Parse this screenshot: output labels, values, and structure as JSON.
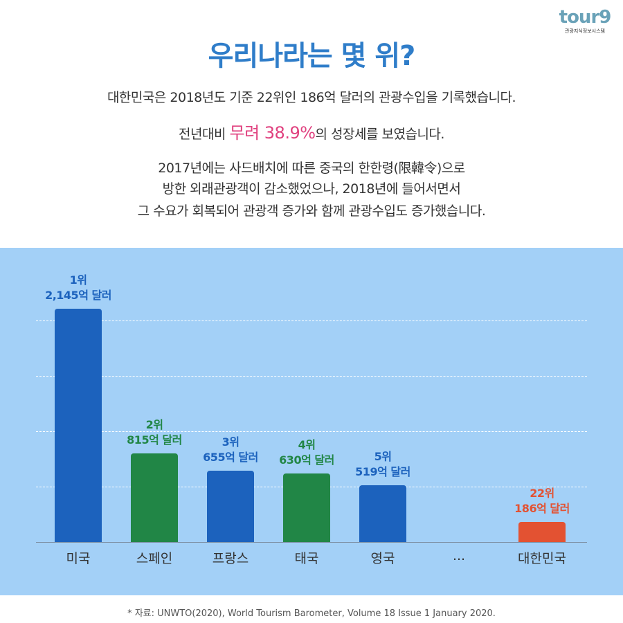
{
  "logo": {
    "text": "tour9",
    "subtitle": "관광지식정보시스템"
  },
  "title": "우리나라는 몇 위?",
  "paragraphs": {
    "p1": "대한민국은 2018년도 기준 22위인 186억 달러의 관광수입을 기록했습니다.",
    "p2_before": "전년대비 ",
    "p2_highlight": "무려 38.9%",
    "p2_after": "의 성장세를 보였습니다.",
    "p3_line1": "2017년에는 사드배치에 따른 중국의 한한령(限韓令)으로",
    "p3_line2": "방한 외래관광객이 감소했었으나, 2018년에 들어서면서",
    "p3_line3": "그 수요가 회복되어 관광객 증가와 함께 관광수입도 증가했습니다."
  },
  "colors": {
    "title": "#2f7dc9",
    "highlight": "#e0417f",
    "background": "#a3d0f7",
    "blue": "#1c62bd",
    "green": "#218646",
    "red": "#e35232"
  },
  "chart_data": {
    "type": "bar",
    "categories": [
      "미국",
      "스페인",
      "프랑스",
      "태국",
      "영국",
      "...",
      "대한민국"
    ],
    "values": [
      2145,
      815,
      655,
      630,
      519,
      null,
      186
    ],
    "ranks": [
      "1위",
      "2위",
      "3위",
      "4위",
      "5위",
      "",
      "22위"
    ],
    "value_labels": [
      "2,145억 달러",
      "815억 달러",
      "655억 달러",
      "630억 달러",
      "519억 달러",
      "",
      "186억 달러"
    ],
    "bar_colors": [
      "#1c62bd",
      "#218646",
      "#1c62bd",
      "#218646",
      "#1c62bd",
      "",
      "#e35232"
    ],
    "unit": "억 달러",
    "grid": true
  },
  "source": "* 자료: UNWTO(2020), World Tourism Barometer, Volume 18 Issue 1 January 2020."
}
